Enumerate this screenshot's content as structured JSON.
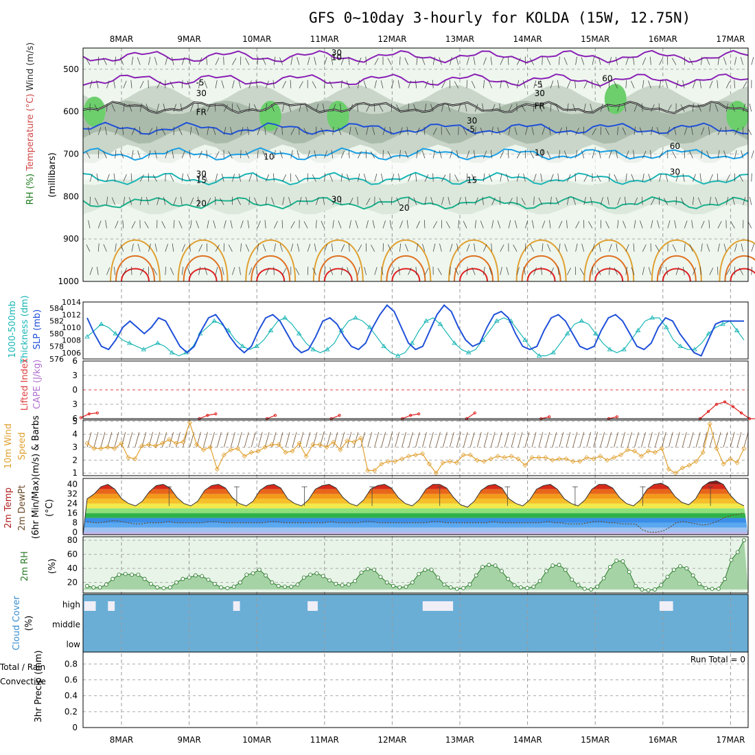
{
  "title": "GFS 0~10day 3-hourly for KOLDA (15W, 12.75N)",
  "dates": [
    "8MAR",
    "9MAR",
    "10MAR",
    "11MAR",
    "12MAR",
    "13MAR",
    "14MAR",
    "15MAR",
    "16MAR",
    "17MAR"
  ],
  "colors": {
    "purple": "#8a1fb5",
    "blue": "#1e4fd8",
    "lightblue": "#1aa0e6",
    "cyan": "#19b5b5",
    "teal": "#1ab08a",
    "orange": "#e0a030",
    "darkorange": "#e07020",
    "red": "#e02020",
    "cloud": "#6aaed6",
    "green": "#2fb52f",
    "rhfill": "#a6d3a6"
  },
  "chart_data": [
    {
      "panel": "upper-air",
      "type": "contour",
      "ylabel_parts": [
        "RH (%)",
        "Temperature (°C)",
        "Wind (m/s)",
        "(millibars)"
      ],
      "y_ticks": [
        "500",
        "600",
        "700",
        "800",
        "900",
        "1000"
      ],
      "ylim": [
        1000,
        450
      ],
      "contour_labels": [
        {
          "text": "10",
          "color": "purple",
          "p": 470,
          "x": "11MAR"
        },
        {
          "text": "-5",
          "color": "purple",
          "p": 530,
          "x": "9MAR"
        },
        {
          "text": "-5",
          "color": "purple",
          "p": 535,
          "x": "14MAR"
        },
        {
          "text": "FR",
          "color": "black",
          "p": 600,
          "x": "9MAR"
        },
        {
          "text": "FR",
          "color": "black",
          "p": 585,
          "x": "14MAR"
        },
        {
          "text": "-5",
          "color": "blue",
          "p": 640,
          "x": "13MAR"
        },
        {
          "text": "10",
          "color": "lightblue",
          "p": 705,
          "x": "10MAR"
        },
        {
          "text": "10",
          "color": "lightblue",
          "p": 695,
          "x": "14MAR"
        },
        {
          "text": "15",
          "color": "cyan",
          "p": 760,
          "x": "9MAR"
        },
        {
          "text": "15",
          "color": "cyan",
          "p": 760,
          "x": "13MAR"
        },
        {
          "text": "20",
          "color": "teal",
          "p": 815,
          "x": "9MAR"
        },
        {
          "text": "20",
          "color": "teal",
          "p": 825,
          "x": "12MAR"
        },
        {
          "text": "30",
          "color": "gray",
          "p": 555,
          "x": "9MAR"
        },
        {
          "text": "30",
          "color": "gray",
          "p": 745,
          "x": "9MAR"
        },
        {
          "text": "30",
          "color": "gray",
          "p": 805,
          "x": "11MAR"
        },
        {
          "text": "30",
          "color": "gray",
          "p": 620,
          "x": "13MAR"
        },
        {
          "text": "30",
          "color": "gray",
          "p": 555,
          "x": "14MAR"
        },
        {
          "text": "60",
          "color": "gray",
          "p": 520,
          "x": "15MAR"
        },
        {
          "text": "60",
          "color": "gray",
          "p": 680,
          "x": "16MAR"
        },
        {
          "text": "30",
          "color": "gray",
          "p": 740,
          "x": "16MAR"
        },
        {
          "text": "30",
          "color": "gray",
          "p": 460,
          "x": "11MAR"
        }
      ]
    },
    {
      "panel": "thickness-slp",
      "type": "line",
      "ylabel_left": [
        "1000-500mb",
        "Thickness (dm)"
      ],
      "ylabel_right": "SLP (mb)",
      "left_ticks": [
        "576",
        "578",
        "580",
        "582",
        "584"
      ],
      "right_ticks": [
        "1006",
        "1008",
        "1010",
        "1012",
        "1014"
      ],
      "series": [
        {
          "name": "Thickness",
          "color": "cyan",
          "axis": "left",
          "ylim": [
            576,
            585
          ],
          "values": [
            579.5,
            580.5,
            581.5,
            581,
            580,
            579,
            578.5,
            578,
            577.5,
            578,
            578.5,
            578,
            577,
            576.5,
            577,
            578,
            580,
            581,
            582,
            581.5,
            580.5,
            579,
            578,
            577.5,
            578,
            579,
            580.5,
            582,
            582.5,
            581.5,
            580,
            578.5,
            577.5,
            577,
            577.5,
            578.5,
            580.5,
            582,
            582.5,
            582,
            581,
            579.5,
            578,
            577,
            576.5,
            577,
            578.5,
            580.5,
            582,
            582.5,
            581.5,
            580,
            578.5,
            577.5,
            577,
            577.5,
            579,
            580.5,
            582,
            582.5,
            582,
            580.5,
            579,
            577.5,
            576.5,
            576.5,
            577,
            578.5,
            580,
            581.5,
            582,
            581.5,
            580,
            578.5,
            577.5,
            577,
            577.5,
            579,
            580.5,
            582,
            582.5,
            582.5,
            581,
            579,
            578,
            577.5,
            577.5,
            578.5,
            580,
            581,
            581.5,
            582,
            580.5,
            579
          ]
        },
        {
          "name": "SLP",
          "color": "blue",
          "axis": "right",
          "ylim": [
            1005,
            1014
          ],
          "values": [
            1011.5,
            1009,
            1007,
            1006.5,
            1008,
            1010,
            1011,
            1010,
            1009,
            1010,
            1011.5,
            1011,
            1009,
            1007,
            1006,
            1007,
            1009.5,
            1011.5,
            1012,
            1010.5,
            1008.5,
            1007,
            1006,
            1007,
            1009.5,
            1011.5,
            1012,
            1011,
            1009,
            1007,
            1006,
            1006.5,
            1008.5,
            1011,
            1011.5,
            1010.5,
            1008.5,
            1007,
            1006.5,
            1007.5,
            1010,
            1012,
            1013.5,
            1012.5,
            1010,
            1007.5,
            1006.5,
            1007,
            1009.5,
            1012,
            1013.5,
            1012.5,
            1010,
            1008,
            1007,
            1007.5,
            1010,
            1012,
            1012.5,
            1011.5,
            1009,
            1007,
            1006.5,
            1007,
            1009.5,
            1011.5,
            1012,
            1011,
            1009,
            1007,
            1006.5,
            1007,
            1009.5,
            1011.5,
            1012,
            1011,
            1009,
            1007,
            1006.5,
            1007.5,
            1010,
            1011.5,
            1011,
            1009,
            1007.5,
            1006,
            1005.5,
            1008,
            1010.5,
            1011,
            1011,
            1011,
            1011
          ]
        }
      ]
    },
    {
      "panel": "lifted-index-cape",
      "type": "line",
      "ylabel": [
        "Lifted Index",
        "CAPE (J/kg)"
      ],
      "y_ticks": [
        "-6",
        "-3",
        "0",
        "3",
        "6"
      ],
      "ylim": [
        -6,
        6
      ],
      "series": [
        {
          "name": "Lifted Index",
          "color": "red",
          "segments": [
            {
              "start_day": 0.0,
              "values": [
                5.8,
                5.0,
                4.8
              ]
            },
            {
              "start_day": 1.75,
              "values": [
                6.0,
                5.3,
                5.0
              ]
            },
            {
              "start_day": 2.75,
              "values": [
                6.0,
                5.3
              ]
            },
            {
              "start_day": 3.7,
              "values": [
                6.0,
                5.3
              ]
            },
            {
              "start_day": 4.75,
              "values": [
                6.0,
                5.3,
                5.0
              ]
            },
            {
              "start_day": 5.7,
              "values": [
                6.0,
                4.8
              ]
            },
            {
              "start_day": 6.8,
              "values": [
                6.0,
                5.6
              ]
            },
            {
              "start_day": 7.8,
              "values": [
                6.0,
                5.6
              ]
            },
            {
              "start_day": 9.15,
              "values": [
                6.0,
                4.5,
                3.0,
                2.5,
                3.5,
                4.8,
                6.0,
                6.0,
                5.5,
                5.0
              ]
            }
          ]
        }
      ]
    },
    {
      "panel": "wind-10m",
      "type": "line",
      "ylabel": [
        "10m Wind",
        "Speed",
        "(m/s)",
        "& Barbs"
      ],
      "y_ticks": [
        "1",
        "2",
        "3",
        "4",
        "5"
      ],
      "ylim": [
        0.8,
        5.1
      ],
      "series": [
        {
          "name": "Speed",
          "color": "orange",
          "values": [
            3.3,
            2.9,
            2.9,
            3.0,
            2.9,
            3.3,
            2.2,
            2.1,
            3.1,
            3.2,
            3.1,
            3.3,
            3.6,
            3.3,
            3.4,
            4.9,
            3.2,
            2.8,
            3.0,
            1.3,
            2.4,
            2.8,
            2.9,
            2.3,
            2.6,
            2.7,
            3.0,
            3.2,
            3.2,
            2.6,
            2.7,
            3.3,
            2.3,
            3.2,
            3.2,
            3.0,
            3.4,
            2.8,
            3.5,
            3.4,
            3.7,
            1.2,
            1.2,
            1.7,
            1.9,
            1.9,
            2.1,
            2.3,
            2.4,
            2.5,
            1.7,
            1.0,
            1.8,
            1.9,
            1.8,
            2.4,
            2.4,
            2.0,
            1.9,
            2.1,
            2.3,
            2.2,
            2.3,
            2.1,
            1.6,
            2.2,
            2.2,
            2.2,
            2.0,
            2.1,
            2.1,
            1.9,
            1.9,
            2.2,
            2.1,
            2.3,
            2.0,
            2.2,
            2.4,
            2.8,
            2.7,
            2.3,
            2.7,
            2.6,
            2.9,
            1.3,
            1.0,
            1.4,
            1.6,
            1.9,
            2.6,
            4.8,
            2.9,
            1.7,
            2.1,
            1.8,
            2.9
          ]
        }
      ]
    },
    {
      "panel": "temp-2m",
      "type": "area",
      "ylabel": [
        "2m Temp",
        "2m DewPt",
        "(6hr Min/Max)",
        "(°C)"
      ],
      "y_ticks": [
        "0",
        "8",
        "16",
        "24",
        "32",
        "40"
      ],
      "ylim": [
        -2,
        45
      ],
      "series": [
        {
          "name": "Temp",
          "values": [
            28,
            32,
            38,
            40,
            36,
            28,
            24,
            22,
            26,
            34,
            39,
            40,
            37,
            29,
            24,
            22,
            26,
            35,
            39,
            40,
            37,
            29,
            24,
            22,
            26,
            35,
            39,
            40,
            37,
            28,
            24,
            22,
            27,
            36,
            39,
            40,
            37,
            29,
            24,
            22,
            27,
            36,
            39,
            40,
            37,
            29,
            24,
            22,
            27,
            36,
            40,
            40,
            37,
            29,
            23,
            21,
            26,
            35,
            39,
            40,
            37,
            28,
            24,
            22,
            27,
            36,
            39,
            40,
            36,
            28,
            24,
            22,
            27,
            36,
            40,
            40,
            37,
            29,
            24,
            22,
            27,
            36,
            40,
            41,
            38,
            30,
            25,
            23,
            28,
            38,
            42,
            43,
            40,
            31,
            25,
            22
          ]
        },
        {
          "name": "DewPt",
          "values": [
            9,
            8,
            8,
            9,
            10,
            9,
            8,
            7,
            7,
            8,
            8,
            8,
            9,
            8,
            8,
            8,
            8,
            8,
            9,
            9,
            8,
            8,
            8,
            8,
            8,
            8,
            8,
            9,
            9,
            8,
            8,
            8,
            8,
            8,
            8,
            8,
            9,
            8,
            8,
            8,
            8,
            9,
            9,
            8,
            8,
            8,
            8,
            8,
            8,
            8,
            8,
            9,
            9,
            8,
            8,
            8,
            8,
            8,
            8,
            8,
            9,
            8,
            8,
            8,
            8,
            8,
            8,
            8,
            9,
            8,
            8,
            7,
            7,
            7,
            8,
            9,
            9,
            8,
            8,
            7,
            7,
            7,
            2,
            0,
            0,
            1,
            4,
            8,
            9,
            8,
            7,
            6,
            7,
            9,
            12,
            14,
            15,
            16
          ]
        }
      ]
    },
    {
      "panel": "rh-2m",
      "type": "area",
      "ylabel": [
        "2m RH",
        "(%)"
      ],
      "y_ticks": [
        "20",
        "40",
        "60",
        "80"
      ],
      "ylim": [
        5,
        85
      ],
      "series": [
        {
          "name": "RH",
          "values": [
            15,
            13,
            13,
            17,
            25,
            31,
            32,
            31,
            31,
            25,
            18,
            13,
            12,
            13,
            20,
            25,
            27,
            30,
            29,
            24,
            18,
            13,
            12,
            14,
            20,
            31,
            33,
            38,
            30,
            20,
            15,
            14,
            14,
            17,
            27,
            31,
            33,
            29,
            23,
            18,
            16,
            17,
            22,
            34,
            39,
            38,
            28,
            20,
            15,
            13,
            14,
            20,
            32,
            38,
            38,
            27,
            17,
            13,
            11,
            12,
            17,
            30,
            42,
            45,
            44,
            36,
            25,
            16,
            13,
            12,
            14,
            22,
            36,
            44,
            45,
            38,
            24,
            16,
            11,
            10,
            14,
            26,
            42,
            51,
            50,
            35,
            15,
            10,
            9,
            10,
            16,
            28,
            38,
            43,
            40,
            30,
            18,
            12,
            11,
            11,
            25,
            52,
            63,
            80
          ]
        }
      ]
    },
    {
      "panel": "cloud-cover",
      "type": "bar",
      "ylabel": [
        "Cloud Cover",
        "(%)"
      ],
      "y_ticks": [
        "high",
        "middle",
        "low"
      ]
    },
    {
      "panel": "precip",
      "type": "bar",
      "ylabel_left": [
        "Total / Rain",
        "Convective"
      ],
      "ylabel": [
        "3hr Precip (mm)"
      ],
      "y_ticks": [
        "0",
        "0.2",
        "0.4",
        "0.6",
        "0.8"
      ],
      "ylim": [
        0,
        0.95
      ],
      "run_total": "Run Total = 0"
    }
  ]
}
